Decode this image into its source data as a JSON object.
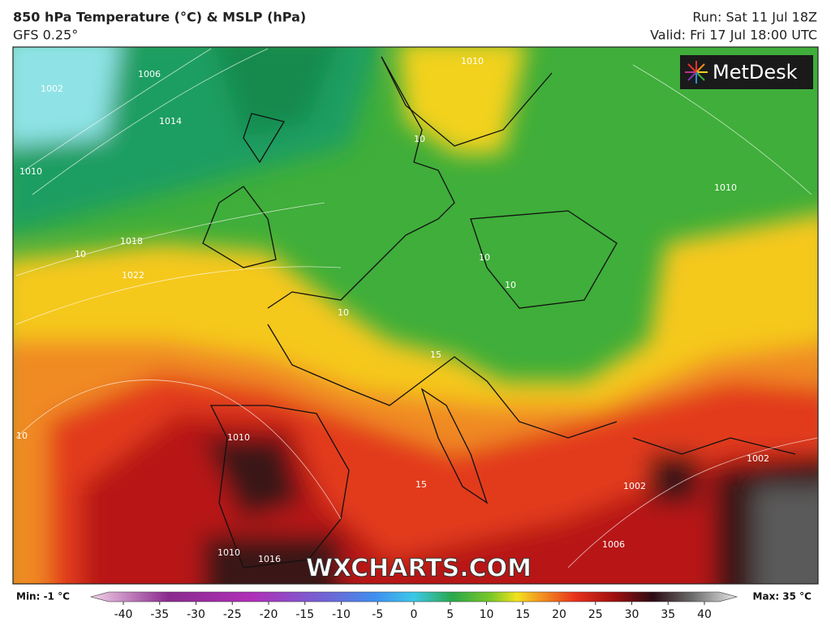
{
  "header": {
    "title": "850 hPa Temperature (°C) & MSLP (hPa)",
    "model": "GFS 0.25°",
    "run": "Run: Sat 11 Jul 18Z",
    "valid": "Valid: Fri 17 Jul 18:00 UTC"
  },
  "logo": "MetDesk",
  "watermark": "WXCHARTS.COM",
  "legend": {
    "min": "Min: -1 °C",
    "max": "Max: 35 °C",
    "ticks": [
      -40,
      -35,
      -30,
      -25,
      -20,
      -15,
      -10,
      -5,
      0,
      5,
      10,
      15,
      20,
      25,
      30,
      35,
      40
    ]
  },
  "contour_labels": [
    "1006",
    "1002",
    "1014",
    "1010",
    "1010",
    "1018",
    "1022",
    "10",
    "10",
    "10",
    "10",
    "10",
    "15",
    "1010",
    "1010",
    "1002",
    "1002",
    "1006",
    "10",
    "15",
    "1010",
    "1016"
  ]
}
